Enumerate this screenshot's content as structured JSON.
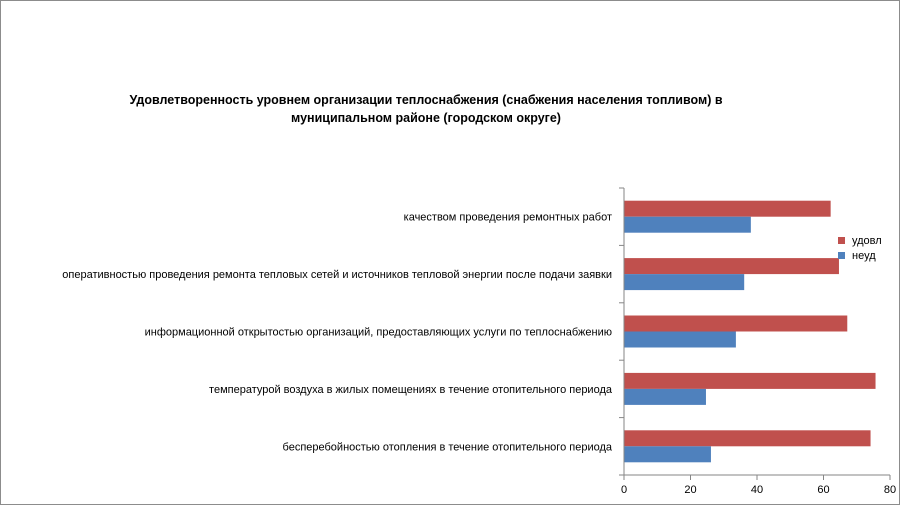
{
  "chart_data": {
    "type": "bar",
    "orientation": "horizontal",
    "title": "Удовлетворенность уровнем организации теплоснабжения (снабжения населения топливом) в муниципальном районе (городском округе)",
    "title_lines": [
      "Удовлетворенность уровнем организации теплоснабжения (снабжения населения топливом) в",
      "муниципальном районе (городском округе)"
    ],
    "categories": [
      "бесперебойностью отопления в течение отопительного периода",
      "температурой воздуха в жилых помещениях в течение отопительного периода",
      "информационной открытостью организаций, предоставляющих услуги по теплоснабжению",
      "оперативностью проведения ремонта тепловых сетей и источников тепловой энергии после подачи заявки",
      "качеством проведения ремонтных работ"
    ],
    "series": [
      {
        "name": "удовл",
        "color": "#c0504d",
        "values": [
          74,
          75.5,
          67,
          64.5,
          62
        ]
      },
      {
        "name": "неуд",
        "color": "#4f81bd",
        "values": [
          26,
          24.5,
          33.5,
          36,
          38
        ]
      }
    ],
    "xlim": [
      0,
      80
    ],
    "xticks": [
      0,
      20,
      40,
      60,
      80
    ],
    "legend_position": "right",
    "grid": false
  }
}
